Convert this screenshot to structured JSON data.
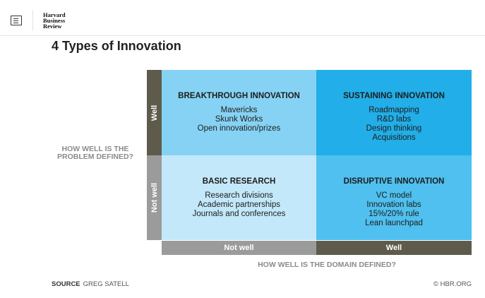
{
  "header": {
    "logo_lines": [
      "Harvard",
      "Business",
      "Review"
    ]
  },
  "title": "4 Types of Innovation",
  "y_axis": {
    "label_lines": [
      "HOW WELL IS THE",
      "PROBLEM DEFINED?"
    ],
    "top": "Well",
    "bottom": "Not well"
  },
  "x_axis": {
    "label": "HOW WELL IS THE DOMAIN DEFINED?",
    "left": "Not well",
    "right": "Well"
  },
  "quadrants": {
    "breakthrough": {
      "heading": "BREAKTHROUGH INNOVATION",
      "items": [
        "Mavericks",
        "Skunk Works",
        "Open innovation/prizes"
      ]
    },
    "sustaining": {
      "heading": "SUSTAINING INNOVATION",
      "items": [
        "Roadmapping",
        "R&D labs",
        "Design thinking",
        "Acquisitions"
      ]
    },
    "basic_research": {
      "heading": "BASIC RESEARCH",
      "items": [
        "Research divisions",
        "Academic partnerships",
        "Journals and conferences"
      ]
    },
    "disruptive": {
      "heading": "DISRUPTIVE INNOVATION",
      "items": [
        "VC model",
        "Innovation labs",
        "15%/20% rule",
        "Lean launchpad"
      ]
    }
  },
  "footer": {
    "source_label": "SOURCE",
    "source_value": "GREG SATELL",
    "credit": "© HBR.ORG"
  },
  "colors": {
    "breakthrough": "#86d2f4",
    "sustaining": "#22aee8",
    "basic_research": "#c3e8fa",
    "disruptive": "#4fc0ef",
    "axis_dark": "#5e5b4c",
    "axis_light": "#9b9b9b"
  }
}
